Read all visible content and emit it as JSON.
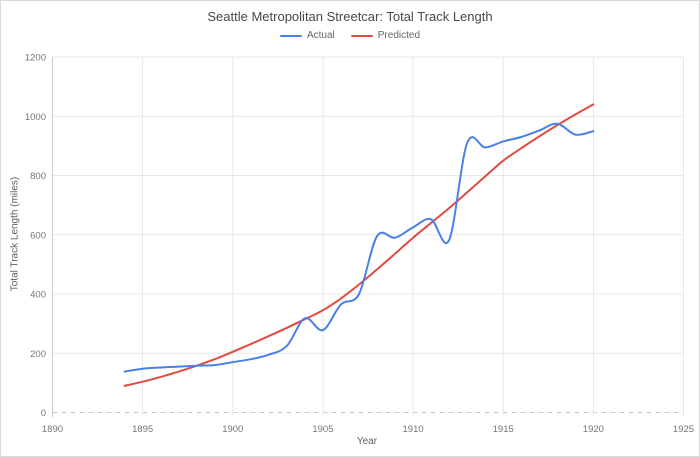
{
  "title": "Seattle Metropolitan Streetcar: Total Track Length",
  "legend": {
    "items": [
      {
        "label": "Actual",
        "color": "#4a80e8"
      },
      {
        "label": "Predicted",
        "color": "#e14b40"
      }
    ]
  },
  "chart_data": {
    "type": "line",
    "title": "Seattle Metropolitan Streetcar: Total Track Length",
    "xlabel": "Year",
    "ylabel": "Total Track Length (miles)",
    "xlim": [
      1890,
      1925
    ],
    "ylim": [
      0,
      1200
    ],
    "x_ticks": [
      1890,
      1895,
      1900,
      1905,
      1910,
      1915,
      1920,
      1925
    ],
    "y_ticks": [
      0,
      200,
      400,
      600,
      800,
      1000,
      1200
    ],
    "grid": true,
    "legend_position": "top-center",
    "line_smoothing": true,
    "x": [
      1894,
      1895,
      1896,
      1897,
      1898,
      1899,
      1900,
      1901,
      1902,
      1903,
      1904,
      1905,
      1906,
      1907,
      1908,
      1909,
      1910,
      1911,
      1912,
      1913,
      1914,
      1915,
      1916,
      1917,
      1918,
      1919,
      1920
    ],
    "series": [
      {
        "name": "Actual",
        "color": "#4a80e8",
        "values": [
          138,
          148,
          152,
          155,
          158,
          160,
          170,
          180,
          195,
          225,
          318,
          278,
          365,
          400,
          595,
          590,
          625,
          652,
          582,
          910,
          895,
          915,
          930,
          952,
          975,
          938,
          950
        ]
      },
      {
        "name": "Predicted",
        "color": "#e14b40",
        "values": [
          90,
          104,
          120,
          138,
          158,
          180,
          205,
          231,
          258,
          286,
          315,
          345,
          385,
          432,
          483,
          536,
          590,
          640,
          690,
          743,
          797,
          850,
          892,
          932,
          970,
          1006,
          1040
        ]
      }
    ]
  },
  "colors": {
    "grid": "#e7e7e7",
    "axis_line": "#c9c9c9",
    "zero_line": "#c8c8c8",
    "tick_text": "#757575",
    "title_text": "#484848",
    "axis_title_text": "#5f5f5f",
    "background": "#ffffff",
    "border": "#d9d9d9"
  }
}
